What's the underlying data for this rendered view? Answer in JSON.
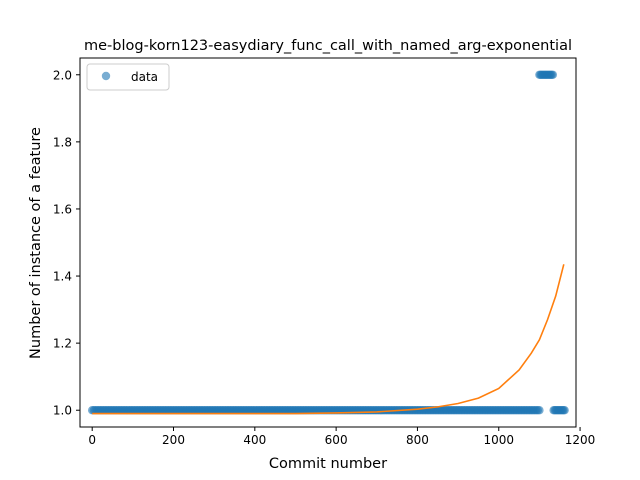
{
  "chart_data": {
    "type": "scatter",
    "title": "me-blog-korn123-easydiary_func_call_with_named_arg-exponential",
    "xlabel": "Commit number",
    "ylabel": "Number of instance of a feature",
    "xlim": [
      -30,
      1190
    ],
    "ylim": [
      0.95,
      2.05
    ],
    "x_ticks": [
      "0",
      "200",
      "400",
      "600",
      "800",
      "1000",
      "1200"
    ],
    "y_ticks": [
      "1.0",
      "1.2",
      "1.4",
      "1.6",
      "1.8",
      "2.0"
    ],
    "legend": {
      "position": "top-left",
      "entries": [
        "data"
      ]
    },
    "grid": false,
    "series": [
      {
        "name": "data",
        "kind": "scatter",
        "color": "#1f77b4",
        "points": [
          {
            "x_start": 0,
            "x_end": 1100,
            "step": 4,
            "y": 1.0
          },
          {
            "x_start": 1100,
            "x_end": 1135,
            "step": 3,
            "y": 2.0
          },
          {
            "x_start": 1135,
            "x_end": 1162,
            "step": 3,
            "y": 1.0
          }
        ]
      },
      {
        "kind": "line",
        "color": "#ff7f0e",
        "x": [
          0,
          100,
          200,
          300,
          400,
          500,
          600,
          700,
          800,
          850,
          900,
          950,
          1000,
          1050,
          1080,
          1100,
          1120,
          1140,
          1160
        ],
        "y": [
          0.99,
          0.99,
          0.99,
          0.99,
          0.99,
          0.99,
          0.992,
          0.995,
          1.003,
          1.01,
          1.02,
          1.036,
          1.065,
          1.12,
          1.17,
          1.21,
          1.27,
          1.34,
          1.435
        ]
      }
    ]
  }
}
